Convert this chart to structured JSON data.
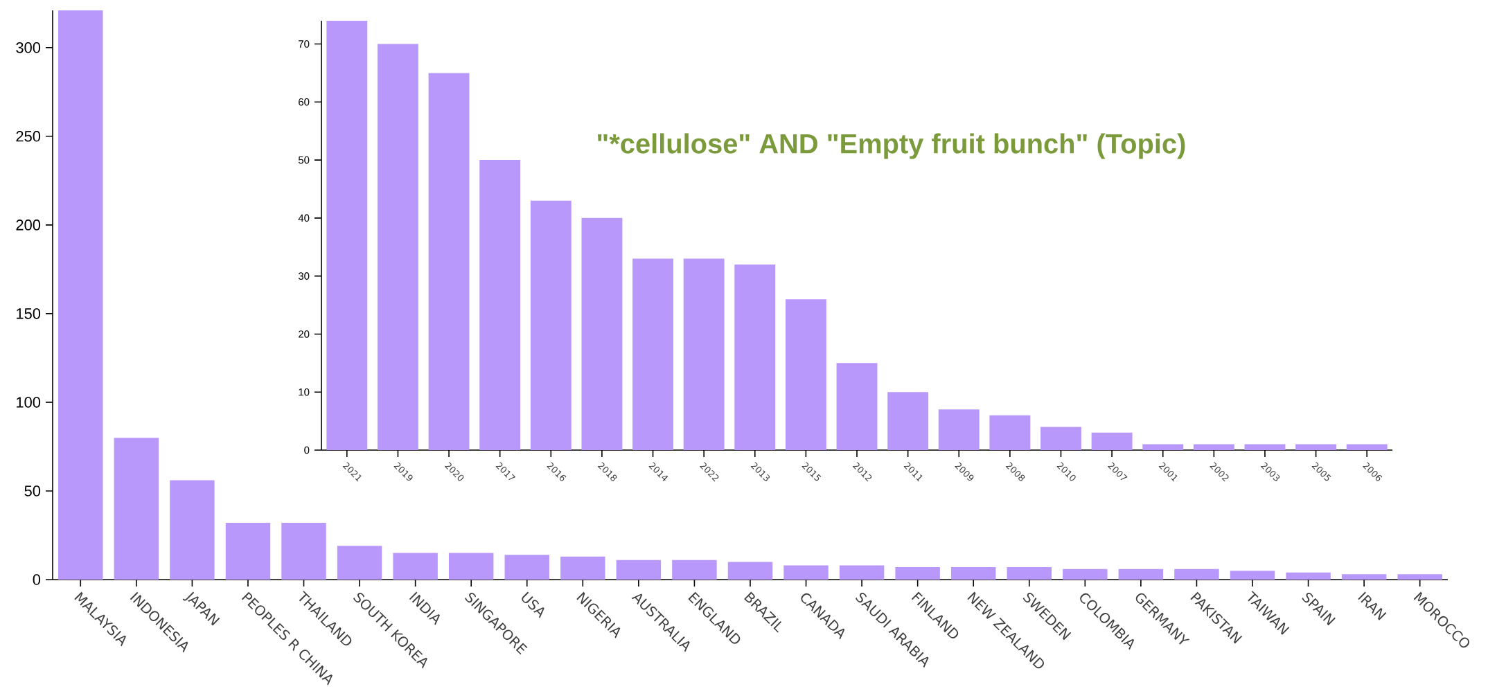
{
  "chart_data": [
    {
      "type": "bar",
      "title": "\"*cellulose\" AND \"Empty fruit bunch\" (Topic)",
      "categories": [
        "MALAYSIA",
        "INDONESIA",
        "JAPAN",
        "PEOPLES R CHINA",
        "THAILAND",
        "SOUTH KOREA",
        "INDIA",
        "SINGAPORE",
        "USA",
        "NIGERIA",
        "AUSTRALIA",
        "ENGLAND",
        "BRAZIL",
        "CANADA",
        "SAUDI ARABIA",
        "FINLAND",
        "NEW ZEALAND",
        "SWEDEN",
        "COLOMBIA",
        "GERMANY",
        "PAKISTAN",
        "TAIWAN",
        "SPAIN",
        "IRAN",
        "MOROCCO"
      ],
      "values": [
        321,
        80,
        56,
        32,
        32,
        19,
        15,
        15,
        14,
        13,
        11,
        11,
        10,
        8,
        8,
        7,
        7,
        7,
        6,
        6,
        6,
        5,
        4,
        3,
        3
      ],
      "color": "#b899fb",
      "ylim": [
        0,
        321
      ],
      "yticks": [
        0,
        50,
        100,
        150,
        200,
        250,
        300
      ]
    },
    {
      "type": "bar",
      "categories": [
        "2021",
        "2019",
        "2020",
        "2017",
        "2016",
        "2018",
        "2014",
        "2022",
        "2013",
        "2015",
        "2012",
        "2011",
        "2009",
        "2008",
        "2010",
        "2007",
        "2001",
        "2002",
        "2003",
        "2005",
        "2006"
      ],
      "values": [
        74,
        70,
        65,
        50,
        43,
        40,
        33,
        33,
        32,
        26,
        15,
        10,
        7,
        6,
        4,
        3,
        1,
        1,
        1,
        1,
        1
      ],
      "color": "#b899fb",
      "ylim": [
        0,
        74
      ],
      "yticks": [
        0,
        10,
        20,
        30,
        40,
        50,
        60,
        70
      ]
    }
  ]
}
